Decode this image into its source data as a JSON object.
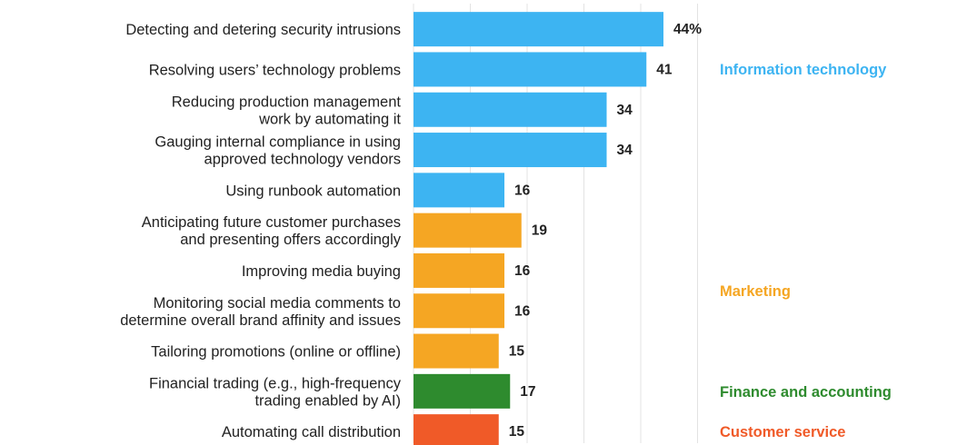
{
  "chart_data": {
    "type": "bar",
    "orientation": "horizontal",
    "value_suffix_first": "%",
    "xlim": [
      0,
      50
    ],
    "gridlines": [
      10,
      20,
      30,
      40,
      50
    ],
    "categories": [
      [
        "Detecting and detering security intrusions"
      ],
      [
        "Resolving users’ technology problems"
      ],
      [
        "Reducing production management",
        "work by automating it"
      ],
      [
        "Gauging internal compliance in using",
        "approved technology vendors"
      ],
      [
        "Using runbook automation"
      ],
      [
        "Anticipating future customer purchases",
        "and presenting offers accordingly"
      ],
      [
        "Improving media buying"
      ],
      [
        "Monitoring social media comments to",
        "determine overall brand affinity and issues"
      ],
      [
        "Tailoring promotions (online or offline)"
      ],
      [
        "Financial trading (e.g., high-frequency",
        "trading enabled by AI)"
      ],
      [
        "Automating call distribution"
      ]
    ],
    "values": [
      44,
      41,
      34,
      34,
      16,
      19,
      16,
      16,
      15,
      17,
      15
    ],
    "groups": [
      {
        "name": "Information technology",
        "color": "#3db4f2",
        "rows": [
          0,
          1,
          2,
          3,
          4
        ]
      },
      {
        "name": "Marketing",
        "color": "#f5a623",
        "rows": [
          5,
          6,
          7,
          8
        ]
      },
      {
        "name": "Finance and accounting",
        "color": "#2e8b2e",
        "rows": [
          9
        ]
      },
      {
        "name": "Customer service",
        "color": "#f05a28",
        "rows": [
          10
        ]
      }
    ]
  }
}
